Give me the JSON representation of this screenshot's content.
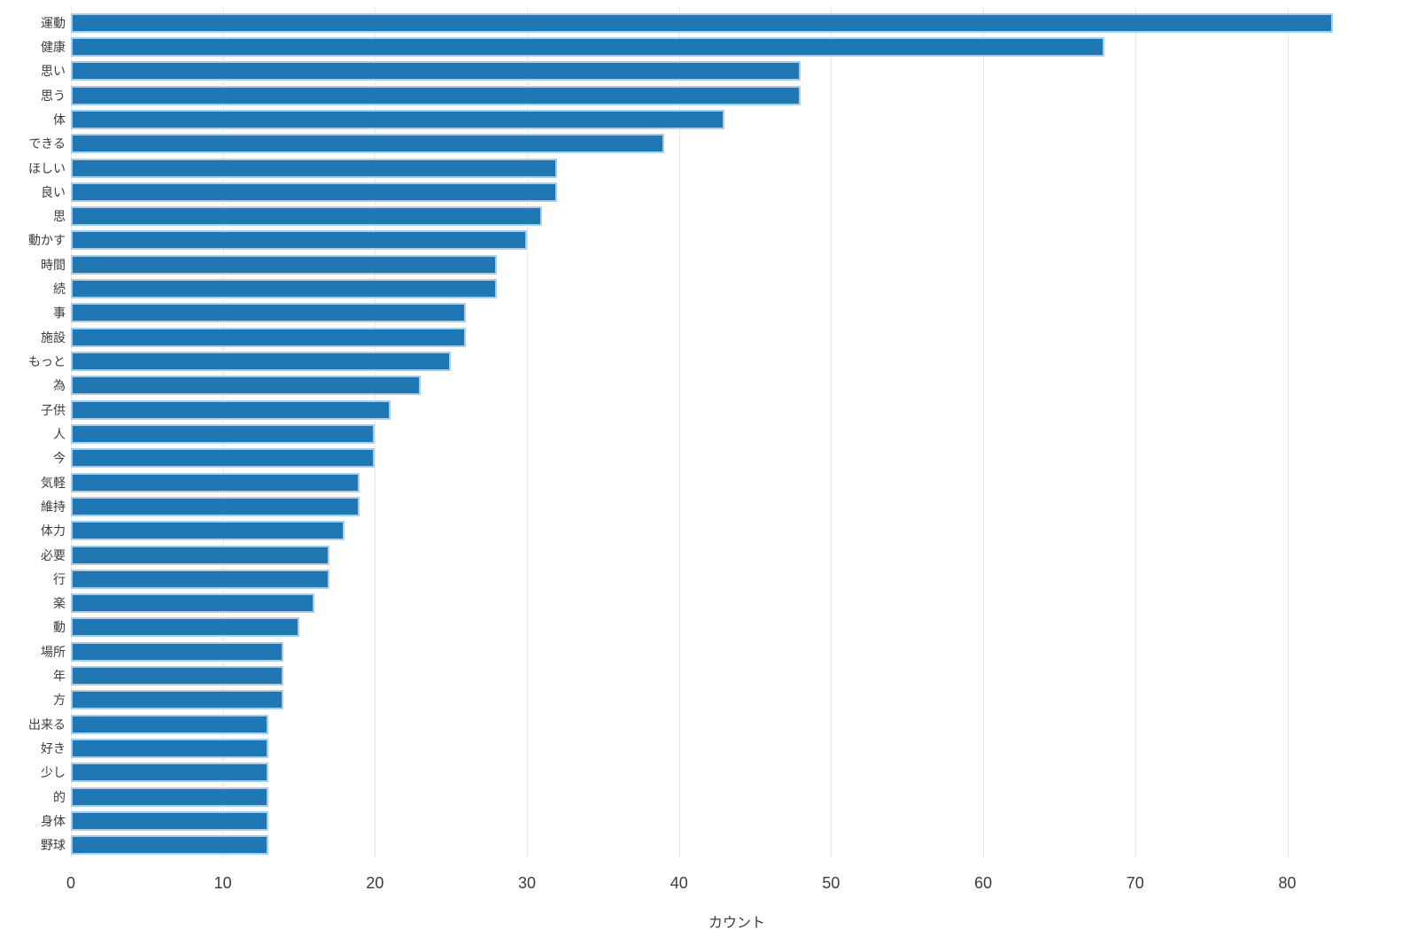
{
  "chart_data": {
    "type": "bar",
    "orientation": "horizontal",
    "title": "",
    "xlabel": "カウント",
    "ylabel": "",
    "categories": [
      "運動",
      "健康",
      "思い",
      "思う",
      "体",
      "できる",
      "ほしい",
      "良い",
      "思",
      "動かす",
      "時間",
      "続",
      "事",
      "施設",
      "もっと",
      "為",
      "子供",
      "人",
      "今",
      "気軽",
      "維持",
      "体力",
      "必要",
      "行",
      "楽",
      "動",
      "場所",
      "年",
      "方",
      "出来る",
      "好き",
      "少し",
      "的",
      "身体",
      "野球"
    ],
    "values": [
      83,
      68,
      48,
      48,
      43,
      39,
      32,
      32,
      31,
      30,
      28,
      28,
      26,
      26,
      25,
      23,
      21,
      20,
      20,
      19,
      19,
      18,
      17,
      17,
      16,
      15,
      14,
      14,
      14,
      13,
      13,
      13,
      13,
      13,
      13
    ],
    "xticks": [
      0,
      10,
      20,
      30,
      40,
      50,
      60,
      70,
      80
    ],
    "xlim": [
      0,
      87.6
    ],
    "grid": true,
    "legend": "none",
    "bar_color": "#1f77b4",
    "bar_edge_color": "#aecde5",
    "grid_color": "#e7e7e7",
    "text_color": "#3c3c3c",
    "background_color": "#ffffff"
  }
}
